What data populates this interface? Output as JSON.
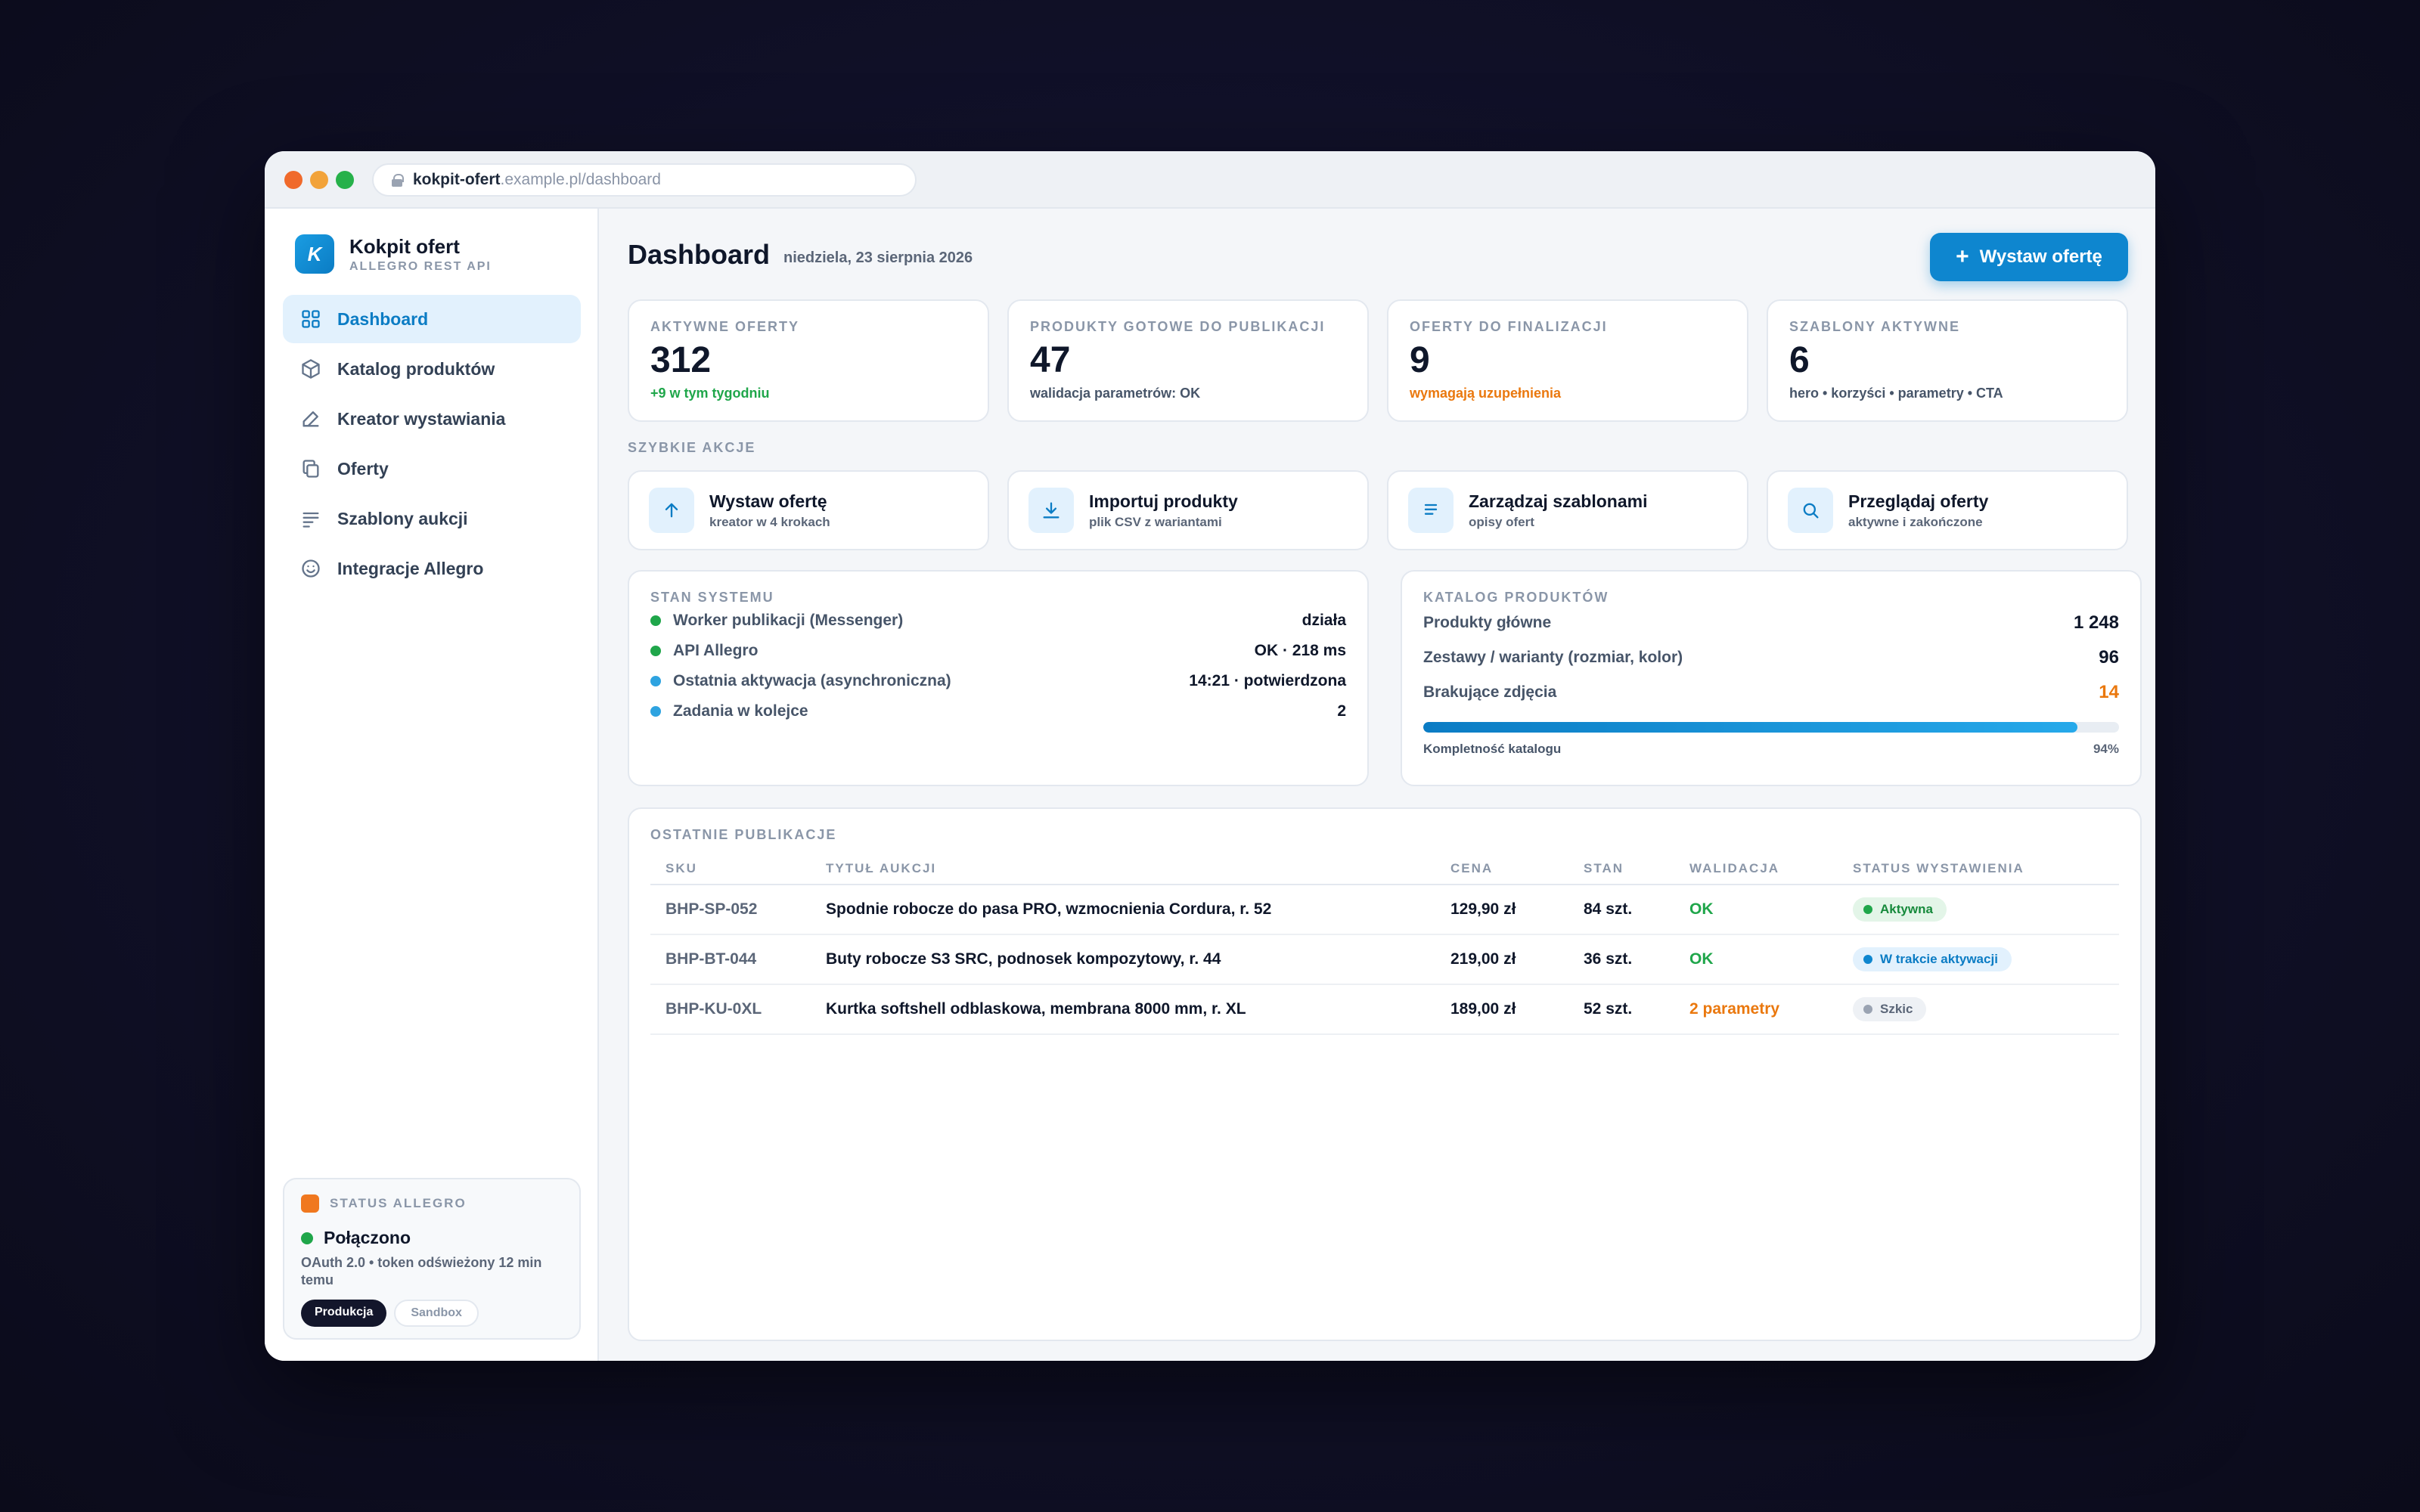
{
  "browser": {
    "url_host": "kokpit-ofert",
    "url_path": ".example.pl/dashboard"
  },
  "brand": {
    "logo_letter": "K",
    "name": "Kokpit ofert",
    "subtitle": "ALLEGRO REST API"
  },
  "sidebar": {
    "items": [
      {
        "label": "Dashboard",
        "icon": "grid-icon",
        "active": true
      },
      {
        "label": "Katalog produktów",
        "icon": "box-icon"
      },
      {
        "label": "Kreator wystawiania",
        "icon": "pencil-icon"
      },
      {
        "label": "Oferty",
        "icon": "copy-icon"
      },
      {
        "label": "Szablony aukcji",
        "icon": "lines-icon"
      },
      {
        "label": "Integracje Allegro",
        "icon": "smile-icon"
      }
    ]
  },
  "allegro_status": {
    "title": "STATUS ALLEGRO",
    "state": "Połączono",
    "description": "OAuth 2.0 • token odświeżony 12 min temu",
    "env_active": "Produkcja",
    "env_inactive": "Sandbox"
  },
  "header": {
    "title": "Dashboard",
    "date": "niedziela, 23 sierpnia 2026",
    "cta_label": "Wystaw ofertę"
  },
  "kpis": [
    {
      "label": "AKTYWNE OFERTY",
      "value": "312",
      "note": "+9 w tym tygodniu"
    },
    {
      "label": "PRODUKTY GOTOWE DO PUBLIKACJI",
      "value": "47",
      "note": "walidacja parametrów: OK"
    },
    {
      "label": "OFERTY DO FINALIZACJI",
      "value": "9",
      "note": "wymagają uzupełnienia"
    },
    {
      "label": "SZABLONY AKTYWNE",
      "value": "6",
      "note": "hero • korzyści • parametry • CTA"
    }
  ],
  "quick_actions": {
    "label": "SZYBKIE AKCJE",
    "items": [
      {
        "title": "Wystaw ofertę",
        "sub": "kreator w 4 krokach",
        "icon": "arrow-up-icon"
      },
      {
        "title": "Importuj produkty",
        "sub": "plik CSV z wariantami",
        "icon": "download-icon"
      },
      {
        "title": "Zarządzaj szablonami",
        "sub": "opisy ofert",
        "icon": "document-lines-icon"
      },
      {
        "title": "Przeglądaj oferty",
        "sub": "aktywne i zakończone",
        "icon": "search-icon"
      }
    ]
  },
  "system": {
    "label": "STAN SYSTEMU",
    "rows": [
      {
        "name": "Worker publikacji (Messenger)",
        "value": "działa",
        "color": "#1fa64a"
      },
      {
        "name": "API Allegro",
        "value": "OK · 218 ms",
        "color": "#1fa64a"
      },
      {
        "name": "Ostatnia aktywacja (asynchroniczna)",
        "value": "14:21 · potwierdzona",
        "color": "#2ea3e0"
      },
      {
        "name": "Zadania w kolejce",
        "value": "2",
        "color": "#2ea3e0"
      }
    ]
  },
  "catalog": {
    "label": "KATALOG PRODUKTÓW",
    "rows": [
      {
        "name": "Produkty główne",
        "value": "1 248"
      },
      {
        "name": "Zestawy / warianty (rozmiar, kolor)",
        "value": "96"
      },
      {
        "name": "Brakujące zdjęcia",
        "value": "14"
      }
    ],
    "completeness_label": "Kompletność katalogu",
    "completeness_text": "94%",
    "completeness_value": 94
  },
  "publications": {
    "label": "OSTATNIE PUBLIKACJE",
    "columns": [
      "SKU",
      "TYTUŁ AUKCJI",
      "CENA",
      "STAN",
      "WALIDACJA",
      "STATUS WYSTAWIENIA"
    ],
    "rows": [
      {
        "sku": "BHP-SP-052",
        "title": "Spodnie robocze do pasa PRO, wzmocnienia Cordura, r. 52",
        "price": "129,90 zł",
        "stock": "84 szt.",
        "validation": "OK",
        "status": "Aktywna"
      },
      {
        "sku": "BHP-BT-044",
        "title": "Buty robocze S3 SRC, podnosek kompozytowy, r. 44",
        "price": "219,00 zł",
        "stock": "36 szt.",
        "validation": "OK",
        "status": "W trakcie aktywacji"
      },
      {
        "sku": "BHP-KU-0XL",
        "title": "Kurtka softshell odblaskowa, membrana 8000 mm, r. XL",
        "price": "189,00 zł",
        "stock": "52 szt.",
        "validation": "2 parametry",
        "status": "Szkic"
      }
    ]
  },
  "colors": {
    "accent": "#0e86cf",
    "success": "#1fa64a",
    "warning": "#ea780e",
    "allegro": "#f0781f"
  }
}
